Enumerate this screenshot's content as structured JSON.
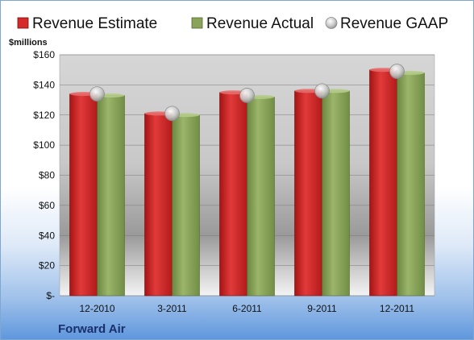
{
  "chart_data": {
    "type": "bar",
    "title": "",
    "company": "Forward Air",
    "ylabel": "$millions",
    "xlabel": "",
    "categories": [
      "12-2010",
      "3-2011",
      "6-2011",
      "9-2011",
      "12-2011"
    ],
    "series": [
      {
        "name": "Revenue Estimate",
        "kind": "bar",
        "color": "#d42a2a",
        "values": [
          134,
          121,
          135,
          136,
          150
        ]
      },
      {
        "name": "Revenue Actual",
        "kind": "bar",
        "color": "#8aa35a",
        "values": [
          133,
          120,
          132,
          136,
          148
        ]
      },
      {
        "name": "Revenue GAAP",
        "kind": "marker",
        "color": "#c0c0c0",
        "values": [
          134,
          121,
          133,
          136,
          149
        ]
      }
    ],
    "ylim": [
      0,
      160
    ],
    "yticks": [
      0,
      20,
      40,
      60,
      80,
      100,
      120,
      140,
      160
    ],
    "ytick_labels": [
      "$-",
      "$20",
      "$40",
      "$60",
      "$80",
      "$100",
      "$120",
      "$140",
      "$160"
    ],
    "grid": true,
    "legend_position": "top"
  }
}
